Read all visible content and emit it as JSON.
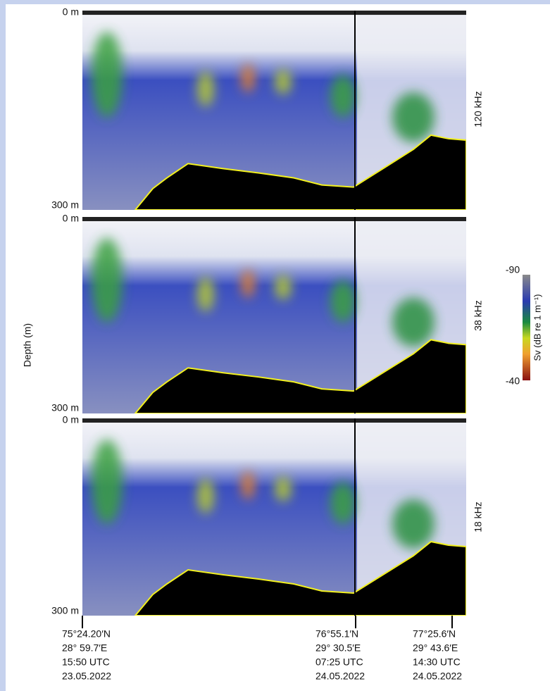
{
  "y_axis_label": "Depth (m)",
  "panels": [
    {
      "top_label": "0 m",
      "bottom_label": "300 m",
      "frequency": "120 kHz"
    },
    {
      "top_label": "0 m",
      "bottom_label": "300 m",
      "frequency": "38 kHz"
    },
    {
      "top_label": "0 m",
      "bottom_label": "300 m",
      "frequency": "18 kHz"
    }
  ],
  "colorbar": {
    "max_label": "-90",
    "min_label": "-40",
    "label": "Sv (dB re 1 m⁻¹)"
  },
  "stations": [
    {
      "lines": [
        "75°24.20′N",
        "28° 59.7′E",
        "15:50 UTC",
        "23.05.2022"
      ]
    },
    {
      "lines": [
        "76°55.1′N",
        "29° 30.5′E",
        "07:25 UTC",
        "24.05.2022"
      ]
    },
    {
      "lines": [
        "77°25.6′N",
        "29° 43.6′E",
        "14:30 UTC",
        "24.05.2022"
      ]
    }
  ]
}
